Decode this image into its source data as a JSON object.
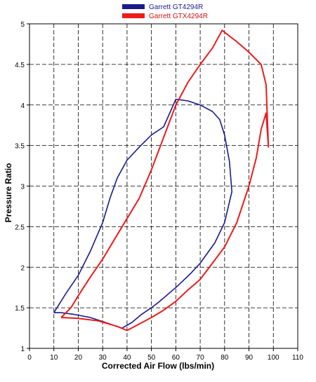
{
  "chart_data": {
    "type": "line",
    "title": "",
    "xlabel": "Corrected Air Flow (lbs/min)",
    "ylabel": "Pressure Ratio",
    "xlim": [
      0,
      110
    ],
    "ylim": [
      1,
      5
    ],
    "x_ticks": [
      "0",
      "10",
      "20",
      "30",
      "40",
      "50",
      "60",
      "70",
      "80",
      "90",
      "100",
      "110"
    ],
    "y_ticks": [
      "1",
      "1.5",
      "2",
      "2.5",
      "3",
      "3.5",
      "4",
      "4.5",
      "5"
    ],
    "grid": true,
    "legend_position": "top-center",
    "series": [
      {
        "name": "Garrett GT4294R",
        "color": "#1a1a8c",
        "x": [
          10,
          13,
          18,
          25,
          30,
          35,
          38,
          42,
          46,
          50,
          53,
          60,
          66,
          70,
          76,
          80,
          83,
          82,
          80,
          78,
          75,
          70,
          65,
          60,
          55,
          50,
          45,
          40,
          36,
          33,
          30,
          25,
          20,
          15,
          10
        ],
        "y": [
          1.44,
          1.44,
          1.42,
          1.38,
          1.33,
          1.28,
          1.25,
          1.32,
          1.42,
          1.5,
          1.57,
          1.75,
          1.92,
          2.05,
          2.3,
          2.55,
          2.93,
          3.3,
          3.63,
          3.82,
          3.92,
          4.0,
          4.05,
          4.07,
          3.73,
          3.63,
          3.48,
          3.32,
          3.1,
          2.85,
          2.55,
          2.2,
          1.9,
          1.68,
          1.44
        ]
      },
      {
        "name": "Garrett GTX4294R",
        "color": "#ee1b1b",
        "x": [
          13,
          20,
          28,
          36,
          40,
          45,
          50,
          55,
          60,
          65,
          70,
          75,
          80,
          85,
          90,
          93,
          95,
          97,
          98,
          97,
          95,
          90,
          85,
          79,
          75,
          70,
          65,
          60,
          55,
          50,
          45,
          40,
          35,
          30,
          25,
          20,
          17,
          13
        ],
        "y": [
          1.38,
          1.37,
          1.34,
          1.27,
          1.22,
          1.3,
          1.38,
          1.47,
          1.58,
          1.72,
          1.85,
          2.05,
          2.25,
          2.55,
          3.0,
          3.35,
          3.7,
          3.9,
          3.48,
          4.25,
          4.5,
          4.65,
          4.78,
          4.92,
          4.7,
          4.5,
          4.28,
          4.0,
          3.6,
          3.2,
          2.85,
          2.6,
          2.35,
          2.1,
          1.88,
          1.65,
          1.5,
          1.38
        ]
      }
    ]
  }
}
